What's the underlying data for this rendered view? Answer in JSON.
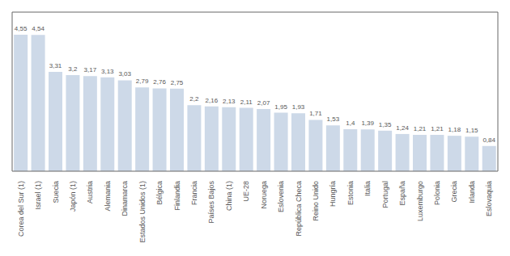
{
  "chart_data": {
    "type": "bar",
    "categories": [
      "Corea del Sur (1)",
      "Israel (1)",
      "Suecia",
      "Japón (1)",
      "Austria",
      "Alemania",
      "Dinamarca",
      "Estados Unidos (1)",
      "Bélgica",
      "Finlandia",
      "Francia",
      "Países Bajos",
      "China (1)",
      "UE-28",
      "Noruega",
      "Eslovenia",
      "República Checa",
      "Reino Unido",
      "Hungría",
      "Estonia",
      "Italia",
      "Portugal",
      "España",
      "Luxemburgo",
      "Polonia",
      "Grecia",
      "Irlanda",
      "Eslovaquia"
    ],
    "values": [
      4.55,
      4.54,
      3.31,
      3.2,
      3.17,
      3.13,
      3.03,
      2.79,
      2.76,
      2.75,
      2.2,
      2.16,
      2.13,
      2.11,
      2.07,
      1.95,
      1.93,
      1.71,
      1.53,
      1.4,
      1.39,
      1.35,
      1.24,
      1.21,
      1.21,
      1.18,
      1.15,
      0.84
    ],
    "value_labels": [
      "4,55",
      "4,54",
      "3,31",
      "3,2",
      "3,17",
      "3,13",
      "3,03",
      "2,79",
      "2,76",
      "2,75",
      "2,2",
      "2,16",
      "2,13",
      "2,11",
      "2,07",
      "1,95",
      "1,93",
      "1,71",
      "1,53",
      "1,4",
      "1,39",
      "1,35",
      "1,24",
      "1,21",
      "1,21",
      "1,18",
      "1,15",
      "0,84"
    ],
    "color": "#cdd9e8",
    "ylim": [
      0,
      5.3
    ],
    "data_labels": true,
    "tick_labels": "x",
    "grid": false
  }
}
